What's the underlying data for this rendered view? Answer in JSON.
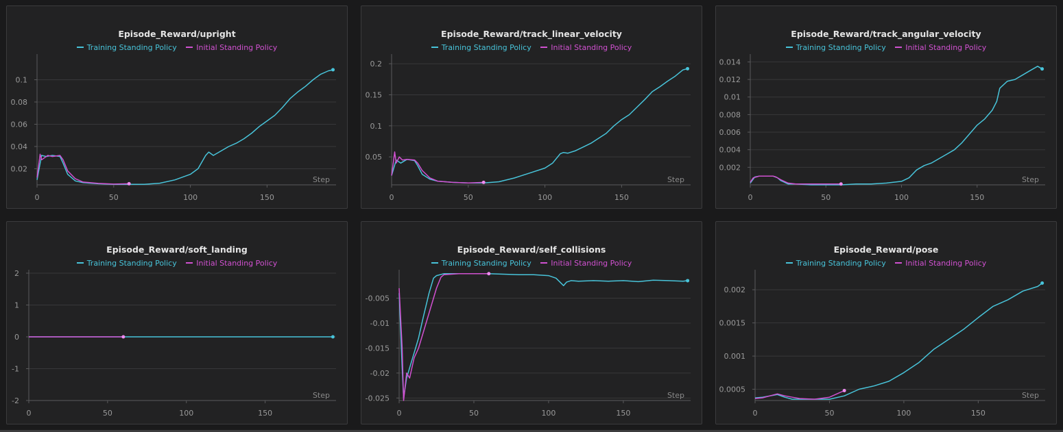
{
  "colors": {
    "training": "#48c4da",
    "initial": "#d151d1"
  },
  "legend": {
    "training": "Training Standing Policy",
    "initial": "Initial Standing Policy"
  },
  "step_label": "Step",
  "chart_data": [
    {
      "type": "line",
      "title": "Episode_Reward/upright",
      "xlabel": "Step",
      "xlim": [
        0,
        195
      ],
      "ylim": [
        0.0055,
        0.12
      ],
      "xticks": [
        0,
        50,
        100,
        150
      ],
      "yticks": [
        0.02,
        0.04,
        0.06,
        0.08,
        0.1
      ],
      "ytick_labels": [
        "0.02",
        "0.04",
        "0.06",
        "0.08",
        "0.1"
      ],
      "series": [
        {
          "name": "Training Standing Policy",
          "x": [
            0,
            3,
            6,
            10,
            15,
            17,
            20,
            25,
            30,
            40,
            50,
            60,
            70,
            80,
            90,
            100,
            105,
            110,
            112,
            115,
            120,
            125,
            130,
            135,
            140,
            145,
            150,
            155,
            160,
            165,
            170,
            175,
            180,
            185,
            190,
            193
          ],
          "y": [
            0.01,
            0.032,
            0.031,
            0.032,
            0.031,
            0.025,
            0.015,
            0.009,
            0.0075,
            0.0065,
            0.006,
            0.006,
            0.006,
            0.007,
            0.01,
            0.015,
            0.02,
            0.032,
            0.035,
            0.032,
            0.036,
            0.04,
            0.043,
            0.047,
            0.052,
            0.058,
            0.063,
            0.068,
            0.075,
            0.083,
            0.089,
            0.094,
            0.1,
            0.105,
            0.108,
            0.109
          ]
        },
        {
          "name": "Initial Standing Policy",
          "x": [
            0,
            2,
            3,
            5,
            7,
            10,
            15,
            17,
            20,
            25,
            30,
            40,
            50,
            60
          ],
          "y": [
            0.012,
            0.033,
            0.028,
            0.03,
            0.032,
            0.031,
            0.032,
            0.028,
            0.018,
            0.011,
            0.008,
            0.0068,
            0.0062,
            0.0065
          ]
        }
      ]
    },
    {
      "type": "line",
      "title": "Episode_Reward/track_linear_velocity",
      "xlabel": "Step",
      "xlim": [
        0,
        195
      ],
      "ylim": [
        0.005,
        0.21
      ],
      "xticks": [
        0,
        50,
        100,
        150
      ],
      "yticks": [
        0.05,
        0.1,
        0.15,
        0.2
      ],
      "ytick_labels": [
        "0.05",
        "0.1",
        "0.15",
        "0.2"
      ],
      "series": [
        {
          "name": "Training Standing Policy",
          "x": [
            0,
            3,
            6,
            10,
            15,
            17,
            20,
            25,
            30,
            40,
            50,
            60,
            70,
            80,
            90,
            100,
            105,
            110,
            112,
            115,
            120,
            125,
            130,
            135,
            140,
            145,
            150,
            155,
            160,
            165,
            170,
            175,
            180,
            185,
            190,
            193
          ],
          "y": [
            0.02,
            0.045,
            0.04,
            0.046,
            0.044,
            0.036,
            0.022,
            0.014,
            0.011,
            0.009,
            0.008,
            0.008,
            0.01,
            0.016,
            0.024,
            0.032,
            0.04,
            0.055,
            0.057,
            0.056,
            0.06,
            0.066,
            0.072,
            0.08,
            0.088,
            0.1,
            0.11,
            0.118,
            0.13,
            0.142,
            0.155,
            0.163,
            0.172,
            0.18,
            0.19,
            0.192
          ]
        },
        {
          "name": "Initial Standing Policy",
          "x": [
            0,
            2,
            3,
            5,
            7,
            10,
            15,
            17,
            20,
            25,
            30,
            40,
            50,
            60
          ],
          "y": [
            0.02,
            0.058,
            0.04,
            0.05,
            0.045,
            0.046,
            0.045,
            0.04,
            0.028,
            0.016,
            0.011,
            0.009,
            0.008,
            0.009
          ]
        }
      ]
    },
    {
      "type": "line",
      "title": "Episode_Reward/track_angular_velocity",
      "xlabel": "Step",
      "xlim": [
        0,
        195
      ],
      "ylim": [
        0,
        0.0145
      ],
      "xticks": [
        0,
        50,
        100,
        150
      ],
      "yticks": [
        0.002,
        0.004,
        0.006,
        0.008,
        0.01,
        0.012,
        0.014
      ],
      "ytick_labels": [
        "0.002",
        "0.004",
        "0.006",
        "0.008",
        "0.01",
        "0.012",
        "0.014"
      ],
      "series": [
        {
          "name": "Training Standing Policy",
          "x": [
            0,
            3,
            6,
            10,
            15,
            18,
            20,
            25,
            30,
            40,
            50,
            60,
            70,
            80,
            90,
            100,
            105,
            110,
            115,
            120,
            125,
            130,
            135,
            140,
            145,
            150,
            155,
            160,
            163,
            165,
            170,
            175,
            180,
            185,
            190,
            193
          ],
          "y": [
            0.0002,
            0.0009,
            0.001,
            0.001,
            0.001,
            0.0008,
            0.0005,
            0.0001,
            0.0001,
            0,
            0,
            0,
            0.0001,
            0.0001,
            0.0002,
            0.0004,
            0.0008,
            0.0017,
            0.0022,
            0.0025,
            0.003,
            0.0035,
            0.004,
            0.0048,
            0.0058,
            0.0068,
            0.0075,
            0.0085,
            0.0095,
            0.011,
            0.0118,
            0.012,
            0.0125,
            0.013,
            0.0135,
            0.0132
          ]
        },
        {
          "name": "Initial Standing Policy",
          "x": [
            0,
            2,
            4,
            6,
            10,
            15,
            17,
            20,
            25,
            30,
            40,
            50,
            60
          ],
          "y": [
            0.0003,
            0.0008,
            0.0009,
            0.001,
            0.001,
            0.001,
            0.0009,
            0.0006,
            0.0002,
            0.0001,
            0.0001,
            0.0001,
            0.0001
          ]
        }
      ]
    },
    {
      "type": "line",
      "title": "Episode_Reward/soft_landing",
      "xlabel": "Step",
      "xlim": [
        0,
        195
      ],
      "ylim": [
        -2,
        2
      ],
      "xticks": [
        0,
        50,
        100,
        150
      ],
      "yticks": [
        -2,
        -1,
        0,
        1,
        2
      ],
      "ytick_labels": [
        "-2",
        "-1",
        "0",
        "1",
        "2"
      ],
      "series": [
        {
          "name": "Training Standing Policy",
          "x": [
            0,
            193
          ],
          "y": [
            0,
            0
          ]
        },
        {
          "name": "Initial Standing Policy",
          "x": [
            0,
            60
          ],
          "y": [
            0,
            0
          ]
        }
      ]
    },
    {
      "type": "line",
      "title": "Episode_Reward/self_collisions",
      "xlabel": "Step",
      "xlim": [
        0,
        195
      ],
      "ylim": [
        -0.0255,
        0
      ],
      "xticks": [
        0,
        50,
        100,
        150
      ],
      "yticks": [
        -0.025,
        -0.02,
        -0.015,
        -0.01,
        -0.005
      ],
      "ytick_labels": [
        "-0.025",
        "-0.02",
        "-0.015",
        "-0.01",
        "-0.005"
      ],
      "series": [
        {
          "name": "Training Standing Policy",
          "x": [
            0,
            2,
            3,
            5,
            8,
            10,
            13,
            16,
            20,
            23,
            25,
            30,
            40,
            50,
            60,
            70,
            80,
            90,
            100,
            105,
            110,
            112,
            115,
            120,
            130,
            140,
            150,
            160,
            170,
            180,
            190,
            193
          ],
          "y": [
            -0.004,
            -0.019,
            -0.025,
            -0.021,
            -0.018,
            -0.016,
            -0.013,
            -0.009,
            -0.004,
            -0.001,
            -0.0005,
            -0.0001,
            -0.0001,
            -0.0001,
            -0.0001,
            -0.0002,
            -0.0003,
            -0.0003,
            -0.0005,
            -0.001,
            -0.0025,
            -0.0018,
            -0.0015,
            -0.0016,
            -0.0015,
            -0.0016,
            -0.0015,
            -0.0017,
            -0.0014,
            -0.0015,
            -0.0016,
            -0.0015
          ]
        },
        {
          "name": "Initial Standing Policy",
          "x": [
            0,
            2,
            3,
            5,
            7,
            10,
            13,
            16,
            20,
            25,
            28,
            30,
            40,
            50,
            60
          ],
          "y": [
            -0.003,
            -0.015,
            -0.0255,
            -0.02,
            -0.021,
            -0.017,
            -0.015,
            -0.012,
            -0.008,
            -0.003,
            -0.0008,
            -0.0003,
            -0.0001,
            -0.0001,
            -0.0001
          ]
        }
      ]
    },
    {
      "type": "line",
      "title": "Episode_Reward/pose",
      "xlabel": "Step",
      "xlim": [
        0,
        195
      ],
      "ylim": [
        0.00033,
        0.00225
      ],
      "xticks": [
        0,
        50,
        100,
        150
      ],
      "yticks": [
        0.0005,
        0.001,
        0.0015,
        0.002
      ],
      "ytick_labels": [
        "0.0005",
        "0.001",
        "0.0015",
        "0.002"
      ],
      "series": [
        {
          "name": "Training Standing Policy",
          "x": [
            0,
            5,
            10,
            15,
            20,
            25,
            30,
            40,
            50,
            60,
            70,
            80,
            90,
            100,
            110,
            120,
            130,
            140,
            150,
            160,
            170,
            180,
            190,
            193
          ],
          "y": [
            0.00037,
            0.00038,
            0.0004,
            0.00042,
            0.00038,
            0.00035,
            0.00035,
            0.00035,
            0.00035,
            0.0004,
            0.0005,
            0.00055,
            0.00062,
            0.00075,
            0.0009,
            0.0011,
            0.00125,
            0.0014,
            0.00158,
            0.00175,
            0.00185,
            0.00198,
            0.00205,
            0.0021
          ]
        },
        {
          "name": "Initial Standing Policy",
          "x": [
            0,
            5,
            10,
            15,
            20,
            25,
            30,
            40,
            50,
            55,
            60
          ],
          "y": [
            0.00036,
            0.00037,
            0.0004,
            0.00043,
            0.0004,
            0.00038,
            0.00036,
            0.00035,
            0.00038,
            0.00043,
            0.00048
          ]
        }
      ]
    }
  ]
}
